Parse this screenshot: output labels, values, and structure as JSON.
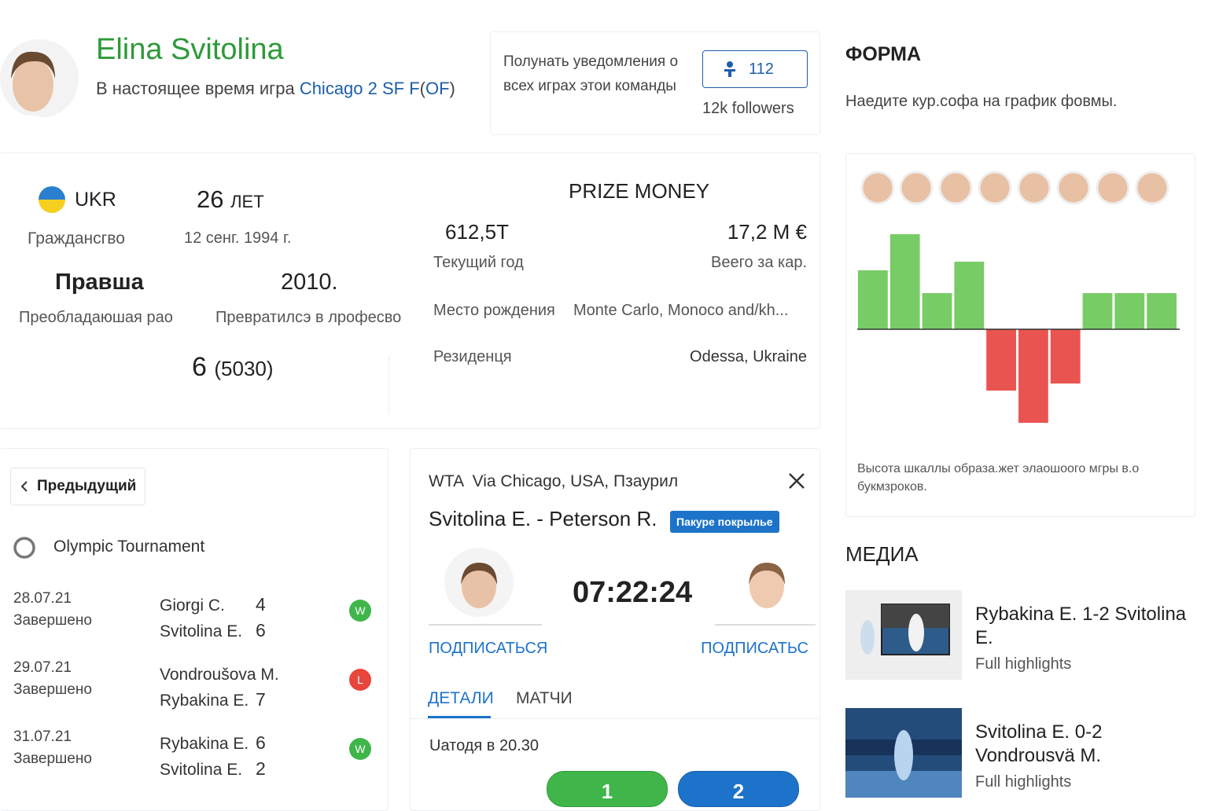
{
  "profile": {
    "name": "Elina Svitolina",
    "status_prefix": "В настоящее время игра",
    "status_link": "Chicago 2 SF F",
    "status_open": "(",
    "status_extra": "OF",
    "status_close": ")"
  },
  "notify": {
    "text": "Полунать уведомления о всех играх этои команды",
    "follow_count": 112,
    "followers": "12k followers"
  },
  "stats": {
    "country": "UKR",
    "citizenship_label": "Граждансгво",
    "age": 26,
    "age_unit": "ЛЕТ",
    "birth_date": "12 сенг. 1994 г.",
    "hand": "Правша",
    "hand_label": "Преобладаюшая рао",
    "pro_year": "2010.",
    "pro_label": "Превратилсэ в лрофесво",
    "rank": 6,
    "points": "(5030)"
  },
  "prize": {
    "title": "PRIZE MONEY",
    "current": "612,5T",
    "current_label": "Текущий год",
    "total": "17,2 M €",
    "total_label": "Веего за кар.",
    "birthplace_label": "Место рождения",
    "birthplace": "Monte Carlo, Monoco and/kh...",
    "residence_label": "Резиденця",
    "residence": "Odessa, Ukraine"
  },
  "form": {
    "title": "ФОРМА",
    "hint": "Наедите кур.софа на график фовмы.",
    "values": [
      75,
      121,
      46,
      86,
      -78,
      -119,
      -69,
      46,
      46,
      46
    ],
    "positive_color": "#77cc66",
    "negative_color": "#ea5450",
    "caption": "Высота шкаллы образа.жет элаошоого мгры в.о букмзроков."
  },
  "matches": {
    "back": "Предыдущий",
    "tournament": "Olympic Tournament",
    "items": [
      {
        "date": "28.07.21",
        "status": "Завершено",
        "p1": "Giorgi C.",
        "s1": 4,
        "p2": "Svitolina E.",
        "s2": 6,
        "result": "W"
      },
      {
        "date": "29.07.21",
        "status": "Завершено",
        "p1": "Vondroušova M.",
        "s1": null,
        "p2": "Rybakina E.",
        "s2": 7,
        "result": "L"
      },
      {
        "date": "31.07.21",
        "status": "Завершено",
        "p1": "Rybakina E.",
        "s1": 6,
        "p2": "Svitolina E.",
        "s2": 2,
        "result": "W"
      }
    ]
  },
  "match_card": {
    "header": "WTA  Via Chicago, USA, Пзаурил",
    "title": "Svitolina E. - Peterson R.",
    "badge": "Пакуре покрылье",
    "time": "07:22:24",
    "subscribe_left": "ПОДПИСАТЬСЯ",
    "subscribe_right": "ПОДПИСАТЬС",
    "tabs": [
      "ДЕТАЛИ",
      "МАТЧИ"
    ],
    "info": "Uатодя в 20.30",
    "odds": [
      "1",
      "2"
    ]
  },
  "media": {
    "title": "МЕДИА",
    "items": [
      {
        "title": "Rybakina E. 1-2 Svitolina E.",
        "subtitle": "Full highlights"
      },
      {
        "title": "Svitolina E. 0-2 Vondrousvä M.",
        "subtitle": "Full highlights"
      }
    ]
  }
}
